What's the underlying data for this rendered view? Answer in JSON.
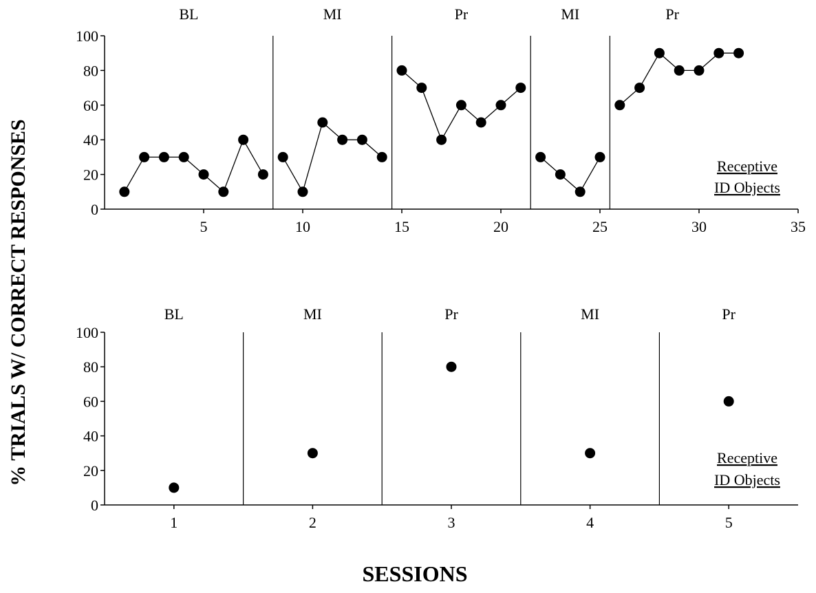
{
  "ylabel": "% TRIALS W/ CORRECT RESPONSES",
  "xlabel": "SESSIONS",
  "chart_data": [
    {
      "type": "line",
      "x_ticks": [
        5,
        10,
        15,
        20,
        25,
        30,
        35
      ],
      "y_ticks": [
        0,
        20,
        40,
        60,
        80,
        100
      ],
      "xlim": [
        0,
        35
      ],
      "ylim": [
        0,
        100
      ],
      "annotation": [
        "Receptive",
        "ID Objects"
      ],
      "phases": [
        {
          "label": "BL",
          "x": [
            1,
            2,
            3,
            4,
            5,
            6,
            7,
            8
          ],
          "y": [
            10,
            30,
            30,
            30,
            20,
            10,
            40,
            20
          ]
        },
        {
          "label": "MI",
          "x": [
            9,
            10,
            11,
            12,
            13,
            14
          ],
          "y": [
            30,
            10,
            50,
            40,
            40,
            30
          ]
        },
        {
          "label": "Pr",
          "x": [
            15,
            16,
            17,
            18,
            19,
            20,
            21
          ],
          "y": [
            80,
            70,
            40,
            60,
            50,
            60,
            70
          ]
        },
        {
          "label": "MI",
          "x": [
            22,
            23,
            24,
            25
          ],
          "y": [
            30,
            20,
            10,
            30
          ]
        },
        {
          "label": "Pr",
          "x": [
            26,
            27,
            28,
            29,
            30,
            31,
            32
          ],
          "y": [
            60,
            70,
            90,
            80,
            80,
            90,
            90
          ]
        }
      ],
      "phase_lines": [
        8.5,
        14.5,
        21.5,
        25.5
      ]
    },
    {
      "type": "scatter",
      "x_ticks": [
        1,
        2,
        3,
        4,
        5
      ],
      "y_ticks": [
        0,
        20,
        40,
        60,
        80,
        100
      ],
      "xlim": [
        0.5,
        5.5
      ],
      "ylim": [
        0,
        100
      ],
      "annotation": [
        "Receptive",
        "ID Objects"
      ],
      "phases": [
        {
          "label": "BL",
          "x": [
            1
          ],
          "y": [
            10
          ]
        },
        {
          "label": "MI",
          "x": [
            2
          ],
          "y": [
            30
          ]
        },
        {
          "label": "Pr",
          "x": [
            3
          ],
          "y": [
            80
          ]
        },
        {
          "label": "MI",
          "x": [
            4
          ],
          "y": [
            30
          ]
        },
        {
          "label": "Pr",
          "x": [
            5
          ],
          "y": [
            60
          ]
        }
      ],
      "phase_lines": [
        1.5,
        2.5,
        3.5,
        4.5
      ]
    }
  ]
}
